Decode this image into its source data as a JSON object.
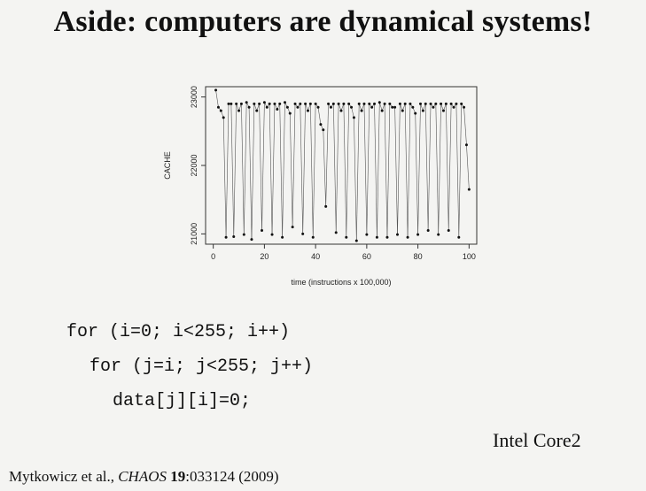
{
  "slide": {
    "title": "Aside: computers are dynamical systems!",
    "code": {
      "line1": "for (i=0; i<255; i++)",
      "line2": "for (j=i; j<255; j++)",
      "line3": "data[j][i]=0;"
    },
    "cpu_label": "Intel Core2",
    "citation": {
      "authors": "Mytkowicz et al., ",
      "journal": "CHAOS",
      "volume": "19",
      "pages_year": ":033124 (2009)"
    }
  },
  "chart_data": {
    "type": "scatter",
    "title": "",
    "xlabel": "time (instructions x 100,000)",
    "ylabel": "CACHE",
    "xlim": [
      -3,
      103
    ],
    "ylim": [
      20850,
      23150
    ],
    "xticks": [
      0,
      20,
      40,
      60,
      80,
      100
    ],
    "yticks": [
      21000,
      22000,
      23000
    ],
    "connected": true,
    "series": [
      {
        "x": [
          1,
          2,
          3,
          4,
          5,
          6,
          7,
          8,
          9,
          10,
          11,
          12,
          13,
          14,
          15,
          16,
          17,
          18,
          19,
          20,
          21,
          22,
          23,
          24,
          25,
          26,
          27,
          28,
          29,
          30,
          31,
          32,
          33,
          34,
          35,
          36,
          37,
          38,
          39,
          40,
          41,
          42,
          43,
          44,
          45,
          46,
          47,
          48,
          49,
          50,
          51,
          52,
          53,
          54,
          55,
          56,
          57,
          58,
          59,
          60,
          61,
          62,
          63,
          64,
          65,
          66,
          67,
          68,
          69,
          70,
          71,
          72,
          73,
          74,
          75,
          76,
          77,
          78,
          79,
          80,
          81,
          82,
          83,
          84,
          85,
          86,
          87,
          88,
          89,
          90,
          91,
          92,
          93,
          94,
          95,
          96,
          97,
          98,
          99,
          100
        ],
        "y": [
          23100,
          22850,
          22800,
          22700,
          20950,
          22900,
          22900,
          20960,
          22900,
          22800,
          22900,
          20990,
          22920,
          22850,
          20920,
          22900,
          22800,
          22900,
          21050,
          22920,
          22850,
          22900,
          20990,
          22900,
          22820,
          22900,
          20950,
          22920,
          22850,
          22760,
          21100,
          22900,
          22850,
          22900,
          21000,
          22900,
          22800,
          22900,
          20950,
          22900,
          22850,
          22600,
          22520,
          21400,
          22900,
          22850,
          22900,
          21020,
          22900,
          22800,
          22900,
          20950,
          22900,
          22850,
          22700,
          20900,
          22900,
          22800,
          22900,
          20990,
          22900,
          22850,
          22900,
          20950,
          22920,
          22800,
          22900,
          20950,
          22900,
          22850,
          22850,
          20990,
          22900,
          22800,
          22900,
          20950,
          22900,
          22850,
          22760,
          20990,
          22900,
          22800,
          22900,
          21050,
          22900,
          22850,
          22900,
          20990,
          22900,
          22800,
          22900,
          21050,
          22900,
          22850,
          22900,
          20950,
          22900,
          22850,
          22300,
          21650
        ]
      }
    ]
  }
}
